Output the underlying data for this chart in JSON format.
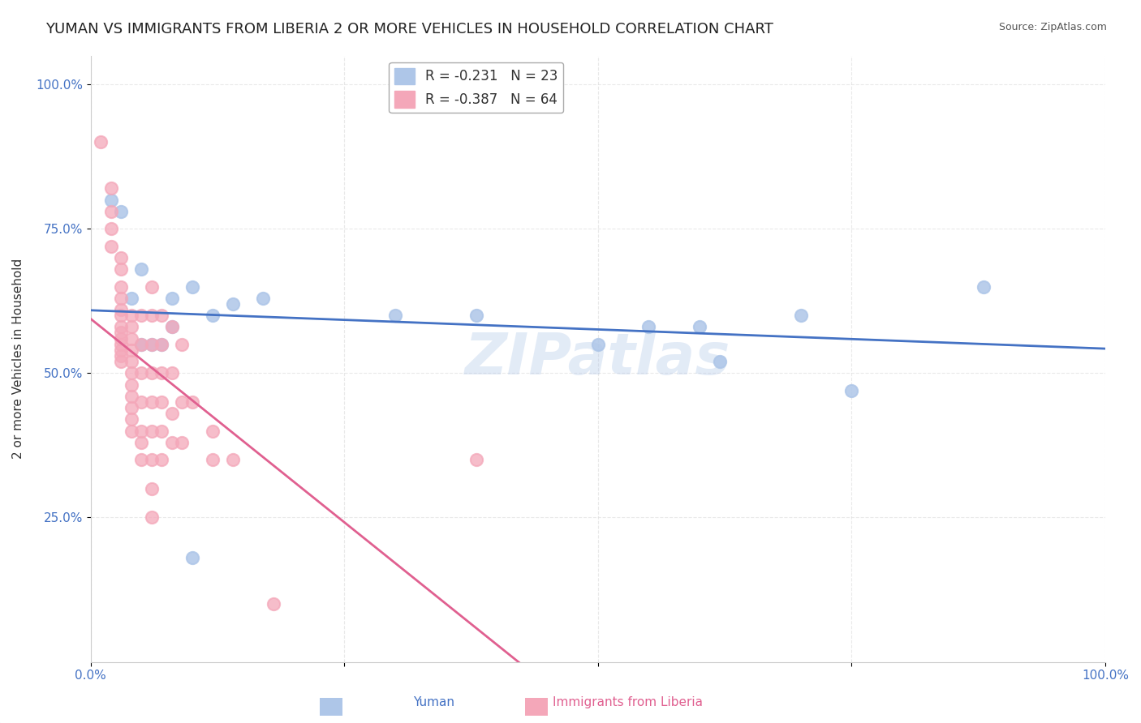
{
  "title": "YUMAN VS IMMIGRANTS FROM LIBERIA 2 OR MORE VEHICLES IN HOUSEHOLD CORRELATION CHART",
  "source": "Source: ZipAtlas.com",
  "xlabel": "",
  "ylabel": "2 or more Vehicles in Household",
  "xticklabels": [
    "0.0%",
    "100.0%"
  ],
  "yticklabels": [
    "25.0%",
    "50.0%",
    "75.0%",
    "100.0%"
  ],
  "legend_labels": [
    "Yuman",
    "Immigrants from Liberia"
  ],
  "r_yuman": "-0.231",
  "n_yuman": "23",
  "r_liberia": "-0.387",
  "n_liberia": "64",
  "yuman_color": "#aec6e8",
  "liberia_color": "#f4a7b9",
  "yuman_line_color": "#4472c4",
  "liberia_line_color": "#e06090",
  "yuman_scatter": [
    [
      0.02,
      0.8
    ],
    [
      0.03,
      0.78
    ],
    [
      0.04,
      0.63
    ],
    [
      0.05,
      0.68
    ],
    [
      0.05,
      0.55
    ],
    [
      0.06,
      0.55
    ],
    [
      0.07,
      0.55
    ],
    [
      0.08,
      0.58
    ],
    [
      0.08,
      0.63
    ],
    [
      0.1,
      0.65
    ],
    [
      0.12,
      0.6
    ],
    [
      0.14,
      0.62
    ],
    [
      0.17,
      0.63
    ],
    [
      0.3,
      0.6
    ],
    [
      0.38,
      0.6
    ],
    [
      0.5,
      0.55
    ],
    [
      0.55,
      0.58
    ],
    [
      0.6,
      0.58
    ],
    [
      0.62,
      0.52
    ],
    [
      0.7,
      0.6
    ],
    [
      0.75,
      0.47
    ],
    [
      0.88,
      0.65
    ],
    [
      0.1,
      0.18
    ]
  ],
  "liberia_scatter": [
    [
      0.01,
      0.9
    ],
    [
      0.02,
      0.82
    ],
    [
      0.02,
      0.78
    ],
    [
      0.02,
      0.75
    ],
    [
      0.02,
      0.72
    ],
    [
      0.03,
      0.7
    ],
    [
      0.03,
      0.68
    ],
    [
      0.03,
      0.65
    ],
    [
      0.03,
      0.63
    ],
    [
      0.03,
      0.61
    ],
    [
      0.03,
      0.6
    ],
    [
      0.03,
      0.58
    ],
    [
      0.03,
      0.57
    ],
    [
      0.03,
      0.56
    ],
    [
      0.03,
      0.55
    ],
    [
      0.03,
      0.54
    ],
    [
      0.03,
      0.53
    ],
    [
      0.03,
      0.52
    ],
    [
      0.04,
      0.6
    ],
    [
      0.04,
      0.58
    ],
    [
      0.04,
      0.56
    ],
    [
      0.04,
      0.54
    ],
    [
      0.04,
      0.52
    ],
    [
      0.04,
      0.5
    ],
    [
      0.04,
      0.48
    ],
    [
      0.04,
      0.46
    ],
    [
      0.04,
      0.44
    ],
    [
      0.04,
      0.42
    ],
    [
      0.04,
      0.4
    ],
    [
      0.05,
      0.6
    ],
    [
      0.05,
      0.55
    ],
    [
      0.05,
      0.5
    ],
    [
      0.05,
      0.45
    ],
    [
      0.05,
      0.4
    ],
    [
      0.05,
      0.38
    ],
    [
      0.05,
      0.35
    ],
    [
      0.06,
      0.65
    ],
    [
      0.06,
      0.6
    ],
    [
      0.06,
      0.55
    ],
    [
      0.06,
      0.5
    ],
    [
      0.06,
      0.45
    ],
    [
      0.06,
      0.4
    ],
    [
      0.06,
      0.35
    ],
    [
      0.06,
      0.3
    ],
    [
      0.06,
      0.25
    ],
    [
      0.07,
      0.6
    ],
    [
      0.07,
      0.55
    ],
    [
      0.07,
      0.5
    ],
    [
      0.07,
      0.45
    ],
    [
      0.07,
      0.4
    ],
    [
      0.07,
      0.35
    ],
    [
      0.08,
      0.58
    ],
    [
      0.08,
      0.5
    ],
    [
      0.08,
      0.43
    ],
    [
      0.08,
      0.38
    ],
    [
      0.09,
      0.55
    ],
    [
      0.09,
      0.45
    ],
    [
      0.09,
      0.38
    ],
    [
      0.1,
      0.45
    ],
    [
      0.12,
      0.4
    ],
    [
      0.12,
      0.35
    ],
    [
      0.14,
      0.35
    ],
    [
      0.18,
      0.1
    ],
    [
      0.38,
      0.35
    ]
  ],
  "xmin": 0.0,
  "xmax": 1.0,
  "ymin": 0.0,
  "ymax": 1.05,
  "watermark": "ZIPatlas",
  "background_color": "#ffffff",
  "grid_color": "#e0e0e0",
  "text_color": "#4472c4",
  "title_color": "#222222",
  "title_fontsize": 13,
  "label_fontsize": 11,
  "tick_fontsize": 11
}
